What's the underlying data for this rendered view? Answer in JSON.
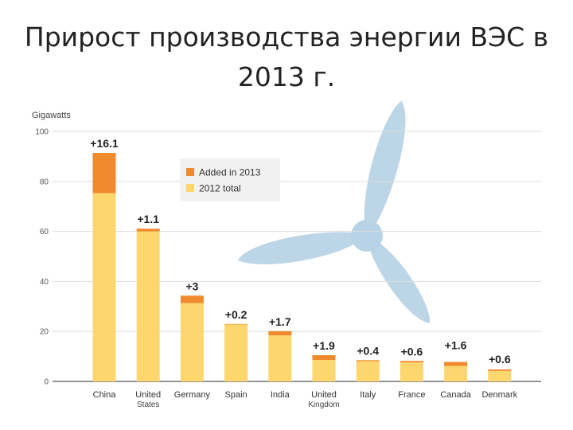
{
  "title": {
    "line1": "Прирост производства энергии ВЭС в",
    "line2": "2013 г."
  },
  "chart_data": {
    "type": "bar",
    "stacked": true,
    "unit_label": "Gigawatts",
    "categories": [
      [
        "China"
      ],
      [
        "United",
        "States"
      ],
      [
        "Germany"
      ],
      [
        "Spain"
      ],
      [
        "India"
      ],
      [
        "United",
        "Kingdom"
      ],
      [
        "Italy"
      ],
      [
        "France"
      ],
      [
        "Canada"
      ],
      [
        "Denmark"
      ]
    ],
    "series": [
      {
        "name": "2012 total",
        "color": "#fdd66e",
        "values": [
          75.3,
          60.0,
          31.3,
          22.8,
          18.4,
          8.6,
          8.1,
          7.6,
          6.2,
          4.2
        ]
      },
      {
        "name": "Added in 2013",
        "color": "#ef8a2d",
        "values": [
          16.1,
          1.1,
          3.0,
          0.2,
          1.7,
          1.9,
          0.4,
          0.6,
          1.6,
          0.6
        ]
      }
    ],
    "data_labels": [
      "+16.1",
      "+1.1",
      "+3",
      "+0.2",
      "+1.7",
      "+1.9",
      "+0.4",
      "+0.6",
      "+1.6",
      "+0.6"
    ],
    "y_ticks": [
      0,
      20,
      40,
      60,
      80,
      100
    ],
    "ylim": [
      0,
      100
    ],
    "legend": {
      "placement": "top-center",
      "entries": [
        "Added in 2013",
        "2012 total"
      ]
    },
    "grid": true
  },
  "decor": {
    "turbine_color": "#b8d3e6"
  }
}
